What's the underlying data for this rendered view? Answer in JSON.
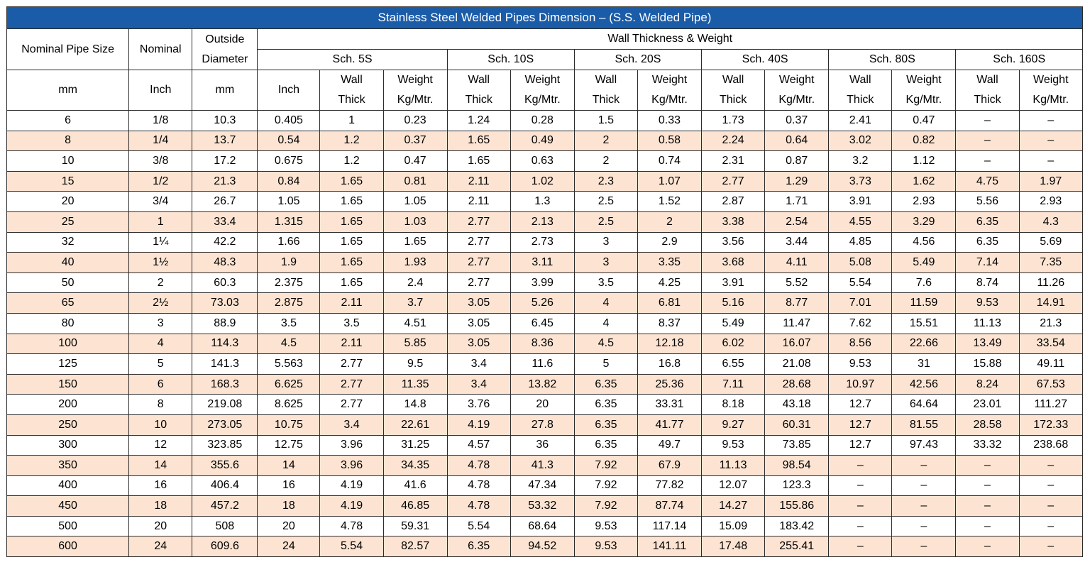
{
  "title": "Stainless Steel Welded Pipes Dimension – (S.S. Welded Pipe)",
  "headers": {
    "nominal_pipe_size": "Nominal Pipe Size",
    "nominal": "Nominal",
    "outside_diameter_line1": "Outside",
    "outside_diameter_line2": "Diameter",
    "wall_group": "Wall Thickness & Weight",
    "schedules": [
      "Sch. 5S",
      "Sch. 10S",
      "Sch. 20S",
      "Sch. 40S",
      "Sch. 80S",
      "Sch. 160S"
    ],
    "units": {
      "mm": "mm",
      "inch": "Inch",
      "od_mm": "mm",
      "od_inch": "Inch",
      "wall_line1": "Wall",
      "wall_line2": "Thick",
      "weight_line1": "Weight",
      "weight_line2": "Kg/Mtr."
    }
  },
  "rows": [
    [
      "6",
      "1/8",
      "10.3",
      "0.405",
      "1",
      "0.23",
      "1.24",
      "0.28",
      "1.5",
      "0.33",
      "1.73",
      "0.37",
      "2.41",
      "0.47",
      "–",
      "–"
    ],
    [
      "8",
      "1/4",
      "13.7",
      "0.54",
      "1.2",
      "0.37",
      "1.65",
      "0.49",
      "2",
      "0.58",
      "2.24",
      "0.64",
      "3.02",
      "0.82",
      "–",
      "–"
    ],
    [
      "10",
      "3/8",
      "17.2",
      "0.675",
      "1.2",
      "0.47",
      "1.65",
      "0.63",
      "2",
      "0.74",
      "2.31",
      "0.87",
      "3.2",
      "1.12",
      "–",
      "–"
    ],
    [
      "15",
      "1/2",
      "21.3",
      "0.84",
      "1.65",
      "0.81",
      "2.11",
      "1.02",
      "2.3",
      "1.07",
      "2.77",
      "1.29",
      "3.73",
      "1.62",
      "4.75",
      "1.97"
    ],
    [
      "20",
      "3/4",
      "26.7",
      "1.05",
      "1.65",
      "1.05",
      "2.11",
      "1.3",
      "2.5",
      "1.52",
      "2.87",
      "1.71",
      "3.91",
      "2.93",
      "5.56",
      "2.93"
    ],
    [
      "25",
      "1",
      "33.4",
      "1.315",
      "1.65",
      "1.03",
      "2.77",
      "2.13",
      "2.5",
      "2",
      "3.38",
      "2.54",
      "4.55",
      "3.29",
      "6.35",
      "4.3"
    ],
    [
      "32",
      "1¼",
      "42.2",
      "1.66",
      "1.65",
      "1.65",
      "2.77",
      "2.73",
      "3",
      "2.9",
      "3.56",
      "3.44",
      "4.85",
      "4.56",
      "6.35",
      "5.69"
    ],
    [
      "40",
      "1½",
      "48.3",
      "1.9",
      "1.65",
      "1.93",
      "2.77",
      "3.11",
      "3",
      "3.35",
      "3.68",
      "4.11",
      "5.08",
      "5.49",
      "7.14",
      "7.35"
    ],
    [
      "50",
      "2",
      "60.3",
      "2.375",
      "1.65",
      "2.4",
      "2.77",
      "3.99",
      "3.5",
      "4.25",
      "3.91",
      "5.52",
      "5.54",
      "7.6",
      "8.74",
      "11.26"
    ],
    [
      "65",
      "2½",
      "73.03",
      "2.875",
      "2.11",
      "3.7",
      "3.05",
      "5.26",
      "4",
      "6.81",
      "5.16",
      "8.77",
      "7.01",
      "11.59",
      "9.53",
      "14.91"
    ],
    [
      "80",
      "3",
      "88.9",
      "3.5",
      "3.5",
      "4.51",
      "3.05",
      "6.45",
      "4",
      "8.37",
      "5.49",
      "11.47",
      "7.62",
      "15.51",
      "11.13",
      "21.3"
    ],
    [
      "100",
      "4",
      "114.3",
      "4.5",
      "2.11",
      "5.85",
      "3.05",
      "8.36",
      "4.5",
      "12.18",
      "6.02",
      "16.07",
      "8.56",
      "22.66",
      "13.49",
      "33.54"
    ],
    [
      "125",
      "5",
      "141.3",
      "5.563",
      "2.77",
      "9.5",
      "3.4",
      "11.6",
      "5",
      "16.8",
      "6.55",
      "21.08",
      "9.53",
      "31",
      "15.88",
      "49.11"
    ],
    [
      "150",
      "6",
      "168.3",
      "6.625",
      "2.77",
      "11.35",
      "3.4",
      "13.82",
      "6.35",
      "25.36",
      "7.11",
      "28.68",
      "10.97",
      "42.56",
      "8.24",
      "67.53"
    ],
    [
      "200",
      "8",
      "219.08",
      "8.625",
      "2.77",
      "14.8",
      "3.76",
      "20",
      "6.35",
      "33.31",
      "8.18",
      "43.18",
      "12.7",
      "64.64",
      "23.01",
      "111.27"
    ],
    [
      "250",
      "10",
      "273.05",
      "10.75",
      "3.4",
      "22.61",
      "4.19",
      "27.8",
      "6.35",
      "41.77",
      "9.27",
      "60.31",
      "12.7",
      "81.55",
      "28.58",
      "172.33"
    ],
    [
      "300",
      "12",
      "323.85",
      "12.75",
      "3.96",
      "31.25",
      "4.57",
      "36",
      "6.35",
      "49.7",
      "9.53",
      "73.85",
      "12.7",
      "97.43",
      "33.32",
      "238.68"
    ],
    [
      "350",
      "14",
      "355.6",
      "14",
      "3.96",
      "34.35",
      "4.78",
      "41.3",
      "7.92",
      "67.9",
      "11.13",
      "98.54",
      "–",
      "–",
      "–",
      "–"
    ],
    [
      "400",
      "16",
      "406.4",
      "16",
      "4.19",
      "41.6",
      "4.78",
      "47.34",
      "7.92",
      "77.82",
      "12.07",
      "123.3",
      "–",
      "–",
      "–",
      "–"
    ],
    [
      "450",
      "18",
      "457.2",
      "18",
      "4.19",
      "46.85",
      "4.78",
      "53.32",
      "7.92",
      "87.74",
      "14.27",
      "155.86",
      "–",
      "–",
      "–",
      "–"
    ],
    [
      "500",
      "20",
      "508",
      "20",
      "4.78",
      "59.31",
      "5.54",
      "68.64",
      "9.53",
      "117.14",
      "15.09",
      "183.42",
      "–",
      "–",
      "–",
      "–"
    ],
    [
      "600",
      "24",
      "609.6",
      "24",
      "5.54",
      "82.57",
      "6.35",
      "94.52",
      "9.53",
      "141.11",
      "17.48",
      "255.41",
      "–",
      "–",
      "–",
      "–"
    ]
  ]
}
